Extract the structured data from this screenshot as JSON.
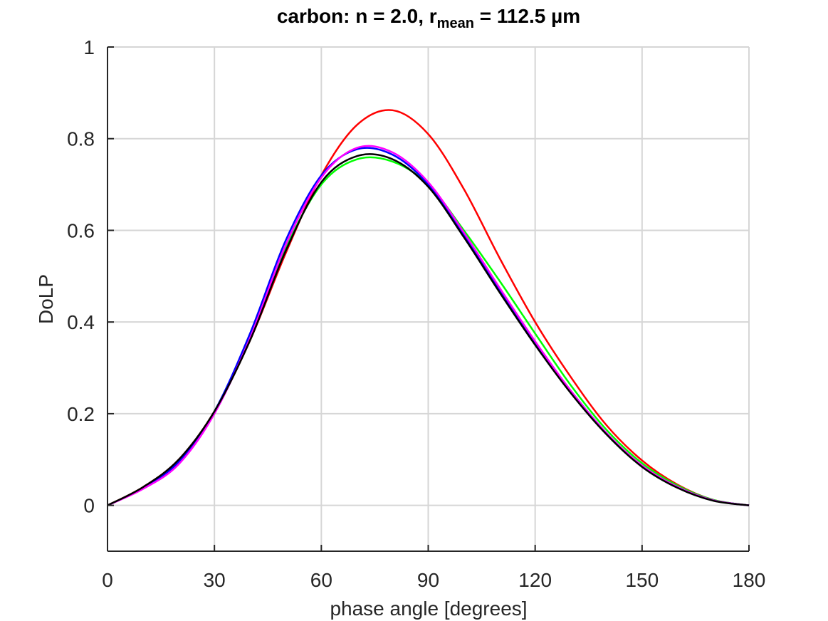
{
  "chart_data": {
    "type": "line",
    "title": {
      "prefix": "carbon: n = 2.0, r",
      "subscript": "mean",
      "suffix": " = 112.5 µm"
    },
    "xlabel": "phase angle [degrees]",
    "ylabel": "DoLP",
    "xlim": [
      0,
      180
    ],
    "ylim": [
      -0.1,
      1.0
    ],
    "xticks": [
      0,
      30,
      60,
      90,
      120,
      150,
      180
    ],
    "xtick_labels": [
      "0",
      "30",
      "60",
      "90",
      "120",
      "150",
      "180"
    ],
    "yticks": [
      0,
      0.2,
      0.4,
      0.6,
      0.8,
      1.0
    ],
    "ytick_labels": [
      "0",
      "0.2",
      "0.4",
      "0.6",
      "0.8",
      "1"
    ],
    "grid": true,
    "x": [
      0,
      10,
      20,
      30,
      40,
      50,
      60,
      70,
      80,
      90,
      100,
      110,
      120,
      130,
      140,
      150,
      160,
      170,
      180
    ],
    "series": [
      {
        "name": "red",
        "color": "#ff0000",
        "values": [
          0.0,
          0.04,
          0.1,
          0.205,
          0.36,
          0.55,
          0.72,
          0.83,
          0.862,
          0.81,
          0.69,
          0.54,
          0.4,
          0.28,
          0.175,
          0.098,
          0.045,
          0.012,
          0.0
        ]
      },
      {
        "name": "green",
        "color": "#00ff00",
        "values": [
          0.0,
          0.038,
          0.095,
          0.205,
          0.365,
          0.56,
          0.7,
          0.755,
          0.75,
          0.7,
          0.6,
          0.49,
          0.375,
          0.262,
          0.165,
          0.092,
          0.043,
          0.012,
          0.0
        ]
      },
      {
        "name": "blue",
        "color": "#0000ff",
        "values": [
          0.0,
          0.038,
          0.095,
          0.205,
          0.375,
          0.578,
          0.72,
          0.777,
          0.765,
          0.7,
          0.59,
          0.47,
          0.355,
          0.25,
          0.158,
          0.086,
          0.04,
          0.011,
          0.0
        ]
      },
      {
        "name": "magenta",
        "color": "#ff00ff",
        "values": [
          0.0,
          0.036,
          0.09,
          0.2,
          0.365,
          0.568,
          0.715,
          0.78,
          0.77,
          0.705,
          0.595,
          0.475,
          0.358,
          0.25,
          0.158,
          0.087,
          0.04,
          0.011,
          0.0
        ]
      },
      {
        "name": "black",
        "color": "#000000",
        "values": [
          0.0,
          0.04,
          0.1,
          0.205,
          0.36,
          0.555,
          0.705,
          0.762,
          0.755,
          0.695,
          0.585,
          0.465,
          0.35,
          0.245,
          0.155,
          0.084,
          0.038,
          0.01,
          0.0
        ]
      }
    ]
  }
}
